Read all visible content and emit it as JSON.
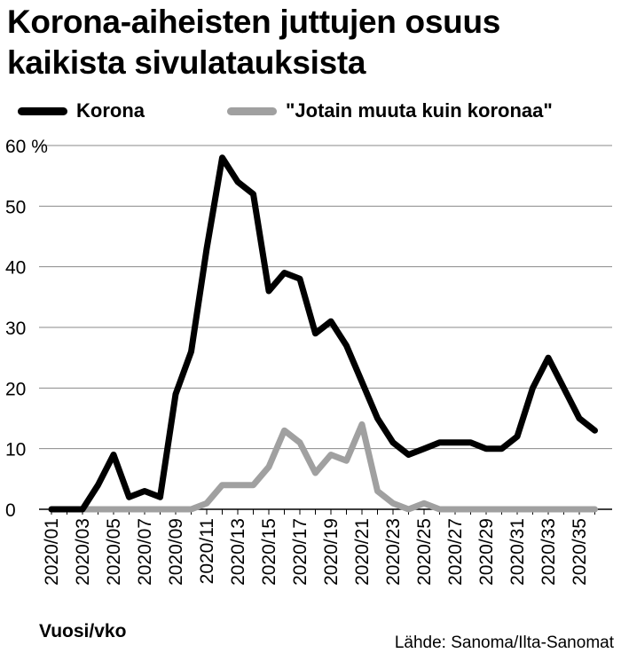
{
  "title": "Korona-aiheisten juttujen osuus kaikista sivulatauksista",
  "source": "Lähde: Sanoma/Ilta-Sanomat",
  "colors": {
    "korona": "#000000",
    "muuta": "#a0a0a0",
    "grid": "#8a8a8a"
  },
  "chart_data": {
    "type": "line",
    "title": "Korona-aiheisten juttujen osuus kaikista sivulatauksista",
    "xlabel": "Vuosi/vko",
    "ylabel": "",
    "ylim": [
      0,
      60
    ],
    "yticks": [
      {
        "value": 0,
        "label": "0"
      },
      {
        "value": 10,
        "label": "10"
      },
      {
        "value": 20,
        "label": "20"
      },
      {
        "value": 30,
        "label": "30"
      },
      {
        "value": 40,
        "label": "40"
      },
      {
        "value": 50,
        "label": "50"
      },
      {
        "value": 60,
        "label": "60 %"
      }
    ],
    "grid": true,
    "legend": "top",
    "x": [
      "2020/01",
      "2020/02",
      "2020/03",
      "2020/04",
      "2020/05",
      "2020/06",
      "2020/07",
      "2020/08",
      "2020/09",
      "2020/10",
      "2020/11",
      "2020/12",
      "2020/13",
      "2020/14",
      "2020/15",
      "2020/16",
      "2020/17",
      "2020/18",
      "2020/19",
      "2020/20",
      "2020/21",
      "2020/22",
      "2020/23",
      "2020/24",
      "2020/25",
      "2020/26",
      "2020/27",
      "2020/28",
      "2020/29",
      "2020/30",
      "2020/31",
      "2020/32",
      "2020/33",
      "2020/34",
      "2020/35",
      "2020/36"
    ],
    "xtick_labels": [
      "2020/01",
      "2020/03",
      "2020/05",
      "2020/07",
      "2020/09",
      "2020/11",
      "2020/13",
      "2020/15",
      "2020/17",
      "2020/19",
      "2020/21",
      "2020/23",
      "2020/25",
      "2020/27",
      "2020/29",
      "2020/31",
      "2020/33",
      "2020/35"
    ],
    "series": [
      {
        "name": "Korona",
        "values": [
          0,
          0,
          0,
          4,
          9,
          2,
          3,
          2,
          19,
          26,
          43,
          58,
          54,
          52,
          36,
          39,
          38,
          29,
          31,
          27,
          21,
          15,
          11,
          9,
          10,
          11,
          11,
          11,
          10,
          10,
          12,
          20,
          25,
          20,
          15,
          13
        ]
      },
      {
        "name": "\"Jotain muuta kuin koronaa\"",
        "values": [
          0,
          0,
          0,
          0,
          0,
          0,
          0,
          0,
          0,
          0,
          1,
          4,
          4,
          4,
          7,
          13,
          11,
          6,
          9,
          8,
          14,
          3,
          1,
          0,
          1,
          0,
          0,
          0,
          0,
          0,
          0,
          0,
          0,
          0,
          0,
          0
        ]
      }
    ]
  }
}
